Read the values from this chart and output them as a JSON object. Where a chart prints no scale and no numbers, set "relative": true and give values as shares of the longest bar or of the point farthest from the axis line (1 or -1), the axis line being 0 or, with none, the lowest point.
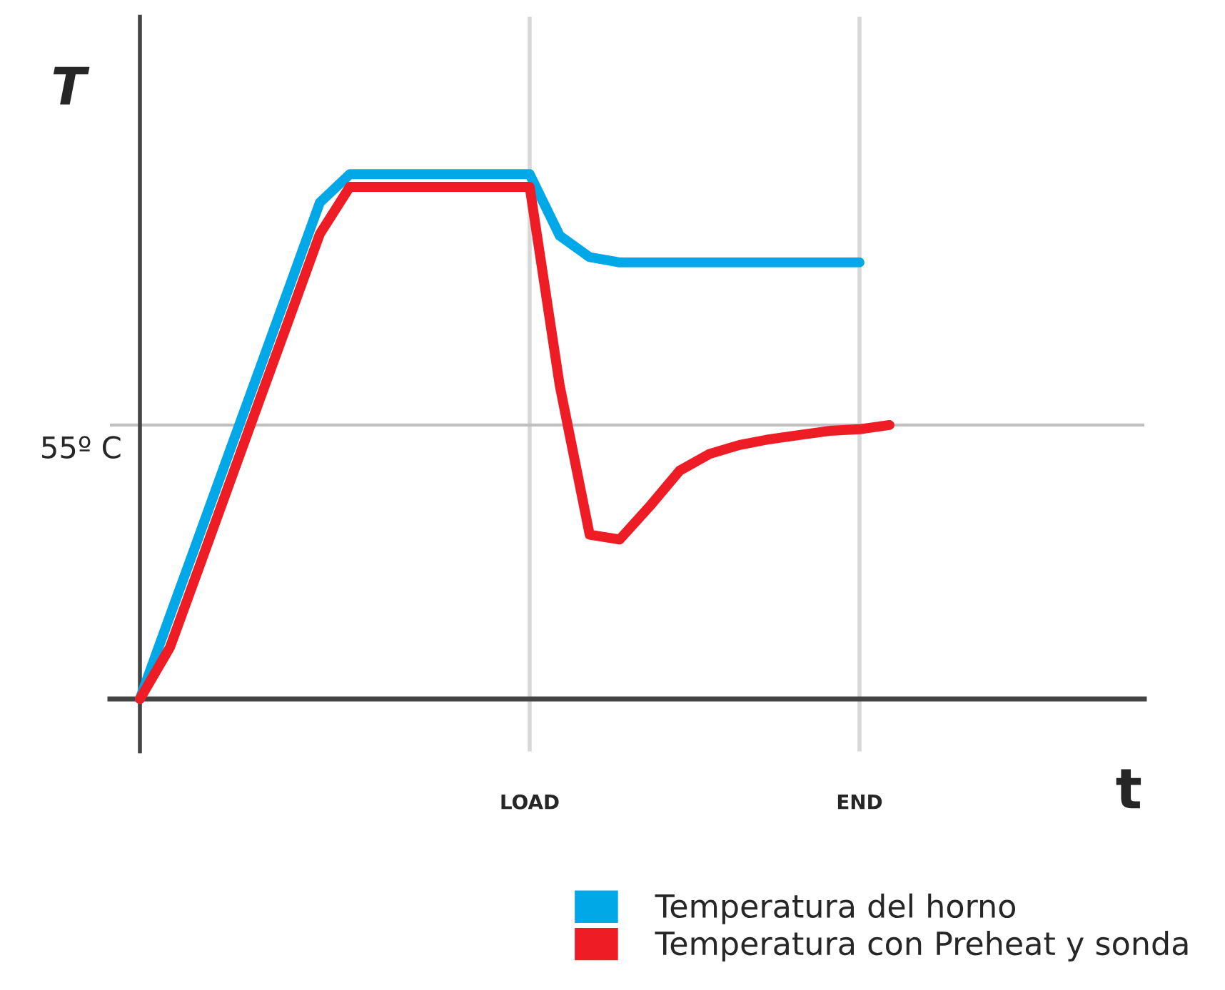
{
  "chart_data": {
    "type": "line",
    "relative": true,
    "xlabel": "t",
    "ylabel": "T",
    "categories": [
      null,
      null,
      null,
      null,
      null,
      null,
      null,
      null,
      null,
      null,
      null,
      null,
      null,
      "LOAD",
      null,
      null,
      null,
      null,
      null,
      null,
      null,
      null,
      null,
      null,
      "END",
      null,
      null,
      null,
      null,
      null,
      null,
      null,
      null,
      null
    ],
    "series": [
      {
        "name": "Temperatura del horno",
        "color": "#00a8e8",
        "values": [
          0,
          0.158,
          0.315,
          0.473,
          0.63,
          0.788,
          0.946,
          1,
          1,
          1,
          1,
          1,
          1,
          1,
          0.883,
          0.842,
          0.832,
          0.832,
          0.832,
          0.832,
          0.832,
          0.832,
          0.832,
          0.832,
          0.832,
          null,
          null,
          null,
          null,
          null,
          null,
          null,
          null,
          null
        ]
      },
      {
        "name": "Temperatura con Preheat y sonda",
        "color": "#ee1c25",
        "values": [
          0,
          0.098,
          0.255,
          0.413,
          0.571,
          0.728,
          0.886,
          0.976,
          0.976,
          0.976,
          0.976,
          0.976,
          0.976,
          0.976,
          0.598,
          0.313,
          0.304,
          0.367,
          0.435,
          0.467,
          0.484,
          0.495,
          0.503,
          0.511,
          0.514,
          0.522,
          null,
          null,
          null,
          null,
          null,
          null,
          null,
          null
        ]
      }
    ],
    "ref_lines": [
      {
        "axis": "y",
        "value": 0.522,
        "label": "55º C",
        "color": "#c0c0c0"
      }
    ],
    "grid": "x",
    "legend": "bottom right",
    "line_style": "solid"
  }
}
